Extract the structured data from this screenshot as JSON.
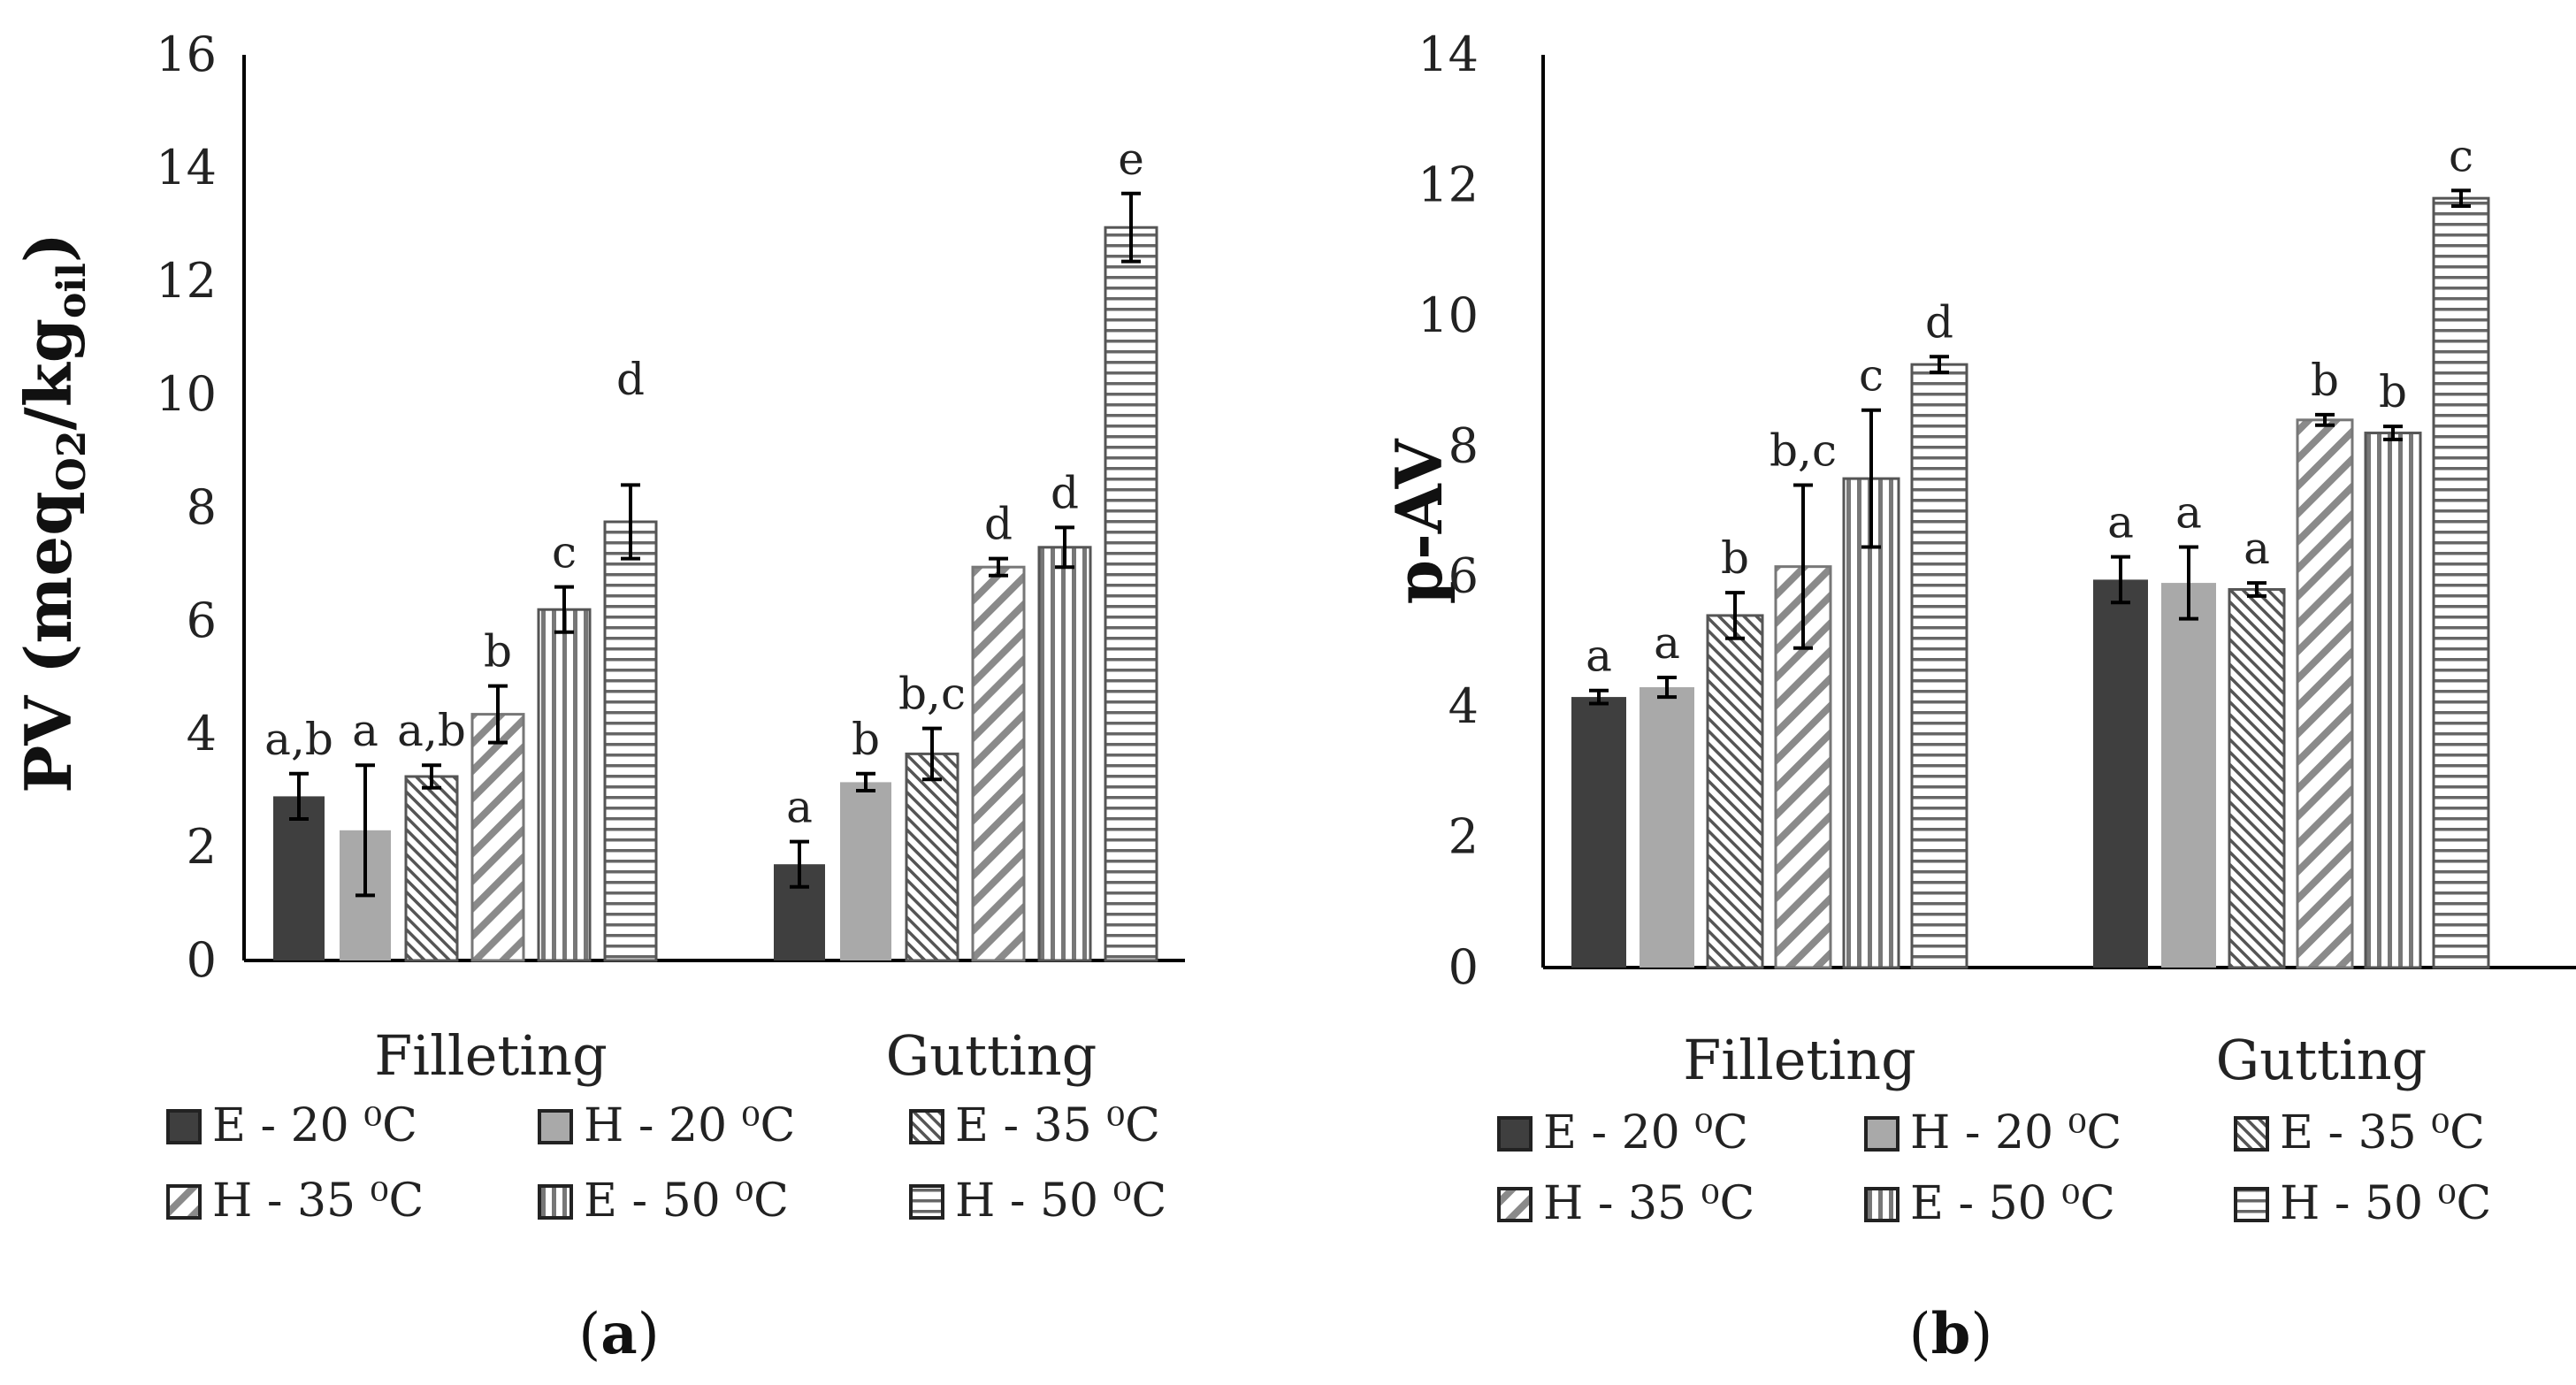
{
  "chart_data": [
    {
      "type": "bar",
      "panel_label": "a",
      "ylabel": "PV (meq",
      "ylabel_sub1": "O2",
      "ylabel_mid": "/kg",
      "ylabel_sub2": "oil",
      "ylabel_end": ")",
      "ylim": [
        0,
        16
      ],
      "yticks": [
        "0",
        "2",
        "4",
        "6",
        "8",
        "10",
        "12",
        "14",
        "16"
      ],
      "categories": [
        "Filleting",
        "Gutting"
      ],
      "series": [
        {
          "name": "E - 20 ⁰C",
          "values": [
            2.9,
            1.7
          ],
          "errors": [
            0.4,
            0.4
          ],
          "letters": [
            "a,b",
            "a"
          ]
        },
        {
          "name": "H - 20 ⁰C",
          "values": [
            2.3,
            3.15
          ],
          "errors": [
            1.15,
            0.15
          ],
          "letters": [
            "a",
            "b"
          ]
        },
        {
          "name": "E - 35 ⁰C",
          "values": [
            3.25,
            3.65
          ],
          "errors": [
            0.2,
            0.45
          ],
          "letters": [
            "a,b",
            "b,c"
          ]
        },
        {
          "name": "H - 35 ⁰C",
          "values": [
            4.35,
            6.95
          ],
          "errors": [
            0.5,
            0.15
          ],
          "letters": [
            "b",
            "d"
          ]
        },
        {
          "name": "E - 50 ⁰C",
          "values": [
            6.2,
            7.3
          ],
          "errors": [
            0.4,
            0.35
          ],
          "letters": [
            "c",
            "d"
          ]
        },
        {
          "name": "H - 50 ⁰C",
          "values": [
            7.75,
            12.95
          ],
          "errors": [
            0.65,
            0.6
          ],
          "letters": [
            "d",
            "e"
          ]
        }
      ]
    },
    {
      "type": "bar",
      "panel_label": "b",
      "ylabel": "p-AV",
      "ylim": [
        0,
        14
      ],
      "yticks": [
        "0",
        "2",
        "4",
        "6",
        "8",
        "10",
        "12",
        "14"
      ],
      "categories": [
        "Filleting",
        "Gutting"
      ],
      "series": [
        {
          "name": "E - 20 ⁰C",
          "values": [
            4.15,
            5.95
          ],
          "errors": [
            0.1,
            0.35
          ],
          "letters": [
            "a",
            "a"
          ]
        },
        {
          "name": "H - 20 ⁰C",
          "values": [
            4.3,
            5.9
          ],
          "errors": [
            0.15,
            0.55
          ],
          "letters": [
            "a",
            "a"
          ]
        },
        {
          "name": "E - 35 ⁰C",
          "values": [
            5.4,
            5.8
          ],
          "errors": [
            0.35,
            0.1
          ],
          "letters": [
            "b",
            "a"
          ]
        },
        {
          "name": "H - 35 ⁰C",
          "values": [
            6.15,
            8.4
          ],
          "errors": [
            1.25,
            0.08
          ],
          "letters": [
            "b,c",
            "b"
          ]
        },
        {
          "name": "E - 50 ⁰C",
          "values": [
            7.5,
            8.2
          ],
          "errors": [
            1.05,
            0.1
          ],
          "letters": [
            "c",
            "b"
          ]
        },
        {
          "name": "H - 50 ⁰C",
          "values": [
            9.25,
            11.8
          ],
          "errors": [
            0.12,
            0.12
          ],
          "letters": [
            "d",
            "c"
          ]
        }
      ]
    }
  ]
}
